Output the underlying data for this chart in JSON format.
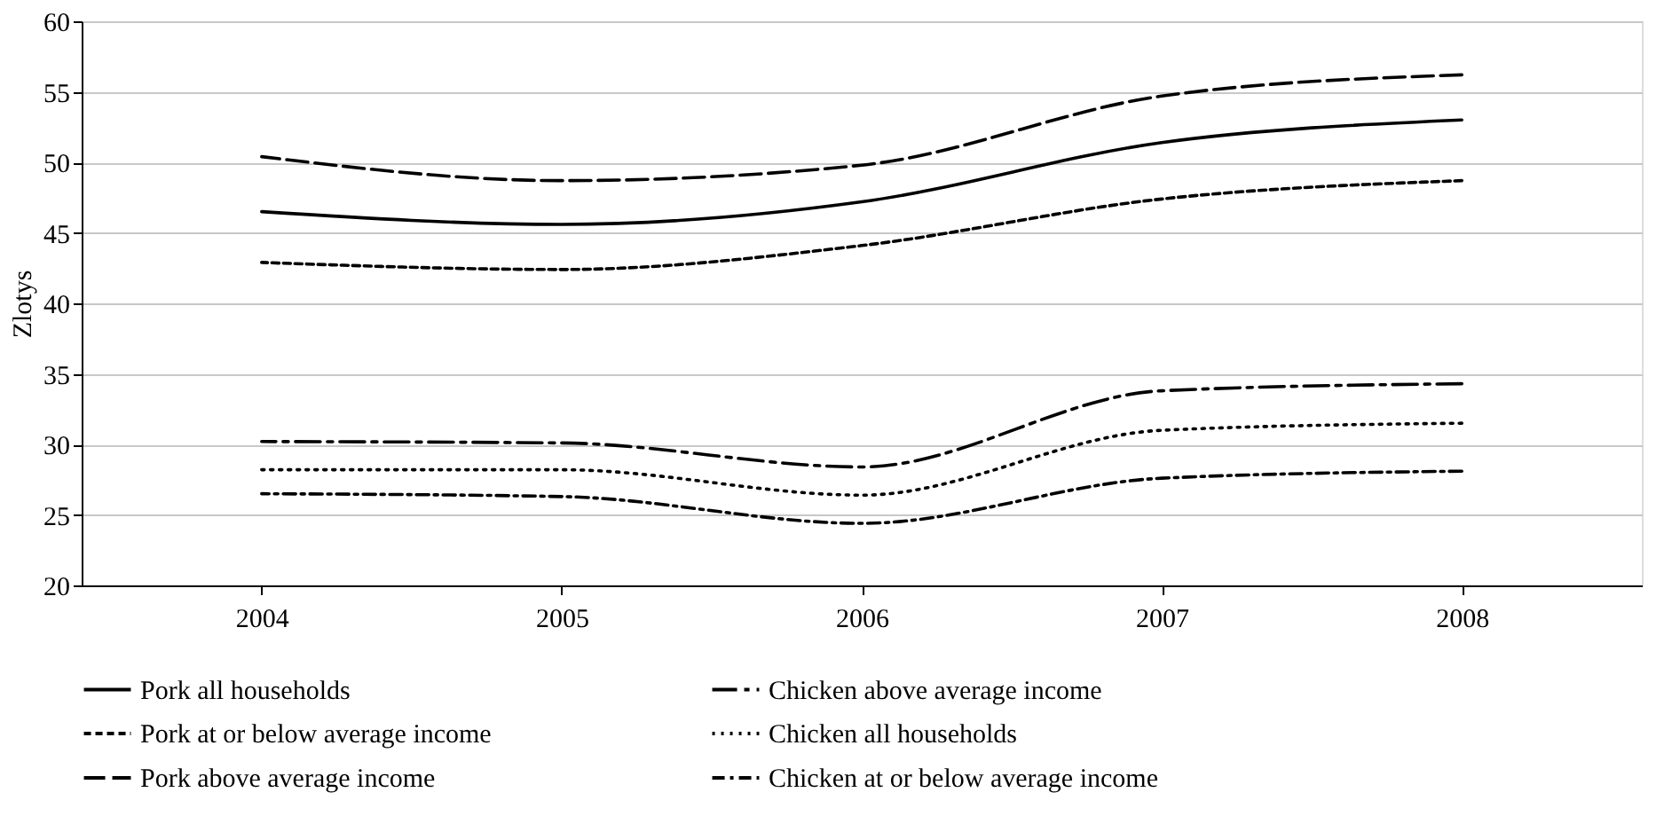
{
  "chart_data": {
    "type": "line",
    "ylabel": "Zlotys",
    "categories": [
      "2004",
      "2005",
      "2006",
      "2007",
      "2008"
    ],
    "ylim": [
      20,
      60
    ],
    "yticks": [
      20,
      25,
      30,
      35,
      40,
      45,
      50,
      55,
      60
    ],
    "grid": "y",
    "legend": "bottom",
    "marker": "none",
    "series": [
      {
        "name": "Pork all households",
        "color": "#000000",
        "line_style": "solid",
        "values": [
          46.5,
          45.6,
          47.2,
          51.4,
          53.0
        ]
      },
      {
        "name": "Pork at or below average income",
        "color": "#000000",
        "line_style": "dashed",
        "values": [
          42.9,
          42.4,
          44.1,
          47.4,
          48.7
        ]
      },
      {
        "name": "Pork above average income",
        "color": "#000000",
        "line_style": "longdashed",
        "values": [
          50.4,
          48.7,
          49.8,
          54.7,
          56.2
        ]
      },
      {
        "name": "Chicken above average income",
        "color": "#000000",
        "line_style": "longdashdot",
        "values": [
          30.2,
          30.1,
          28.4,
          33.8,
          34.3
        ]
      },
      {
        "name": "Chicken all households",
        "color": "#000000",
        "line_style": "dotted",
        "values": [
          28.2,
          28.2,
          26.4,
          31.0,
          31.5
        ]
      },
      {
        "name": "Chicken at or below average income",
        "color": "#000000",
        "line_style": "dashdot",
        "values": [
          26.5,
          26.3,
          24.4,
          27.6,
          28.1
        ]
      }
    ]
  }
}
